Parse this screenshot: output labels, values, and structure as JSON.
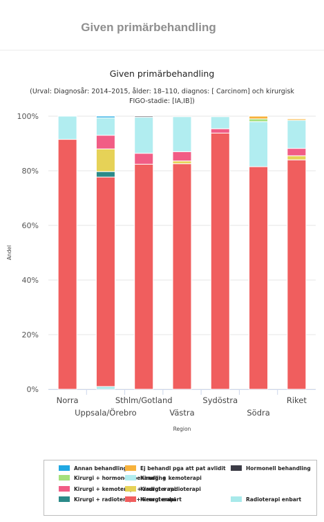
{
  "page": {
    "title": "Given primärbehandling"
  },
  "chart_data": {
    "type": "bar",
    "stacked": true,
    "title": "Given primärbehandling",
    "subtitle_lines": [
      "(Urval: Diagnosår: 2014–2015, ålder: 18–110, diagnos: [ Carcinom] och kirurgisk",
      "FIGO-stadie: [IA,IB])"
    ],
    "xlabel": "Region",
    "ylabel": "Andel",
    "ylim": [
      0,
      100
    ],
    "yticks": [
      "0%",
      "20%",
      "40%",
      "60%",
      "80%",
      "100%"
    ],
    "categories": [
      "Norra",
      "Uppsala/Örebro",
      "Sthlm/Gotland",
      "Västra",
      "Sydöstra",
      "Södra",
      "Riket"
    ],
    "series": [
      {
        "name": "Radioterapi enbart",
        "color": "#a8e9ea",
        "values": [
          0,
          1,
          0,
          0,
          0,
          0,
          0
        ]
      },
      {
        "name": "Kirurgi enbart",
        "color": "#f05e5e",
        "values": [
          91.5,
          76.7,
          82.4,
          82.6,
          93.8,
          81.5,
          84
        ]
      },
      {
        "name": "Kirurgi + radioterapi + kemoterapi",
        "color": "#2b8a89",
        "values": [
          0,
          2,
          0,
          0,
          0,
          0,
          0
        ]
      },
      {
        "name": "Kirurgi + radioterapi",
        "color": "#e6d257",
        "values": [
          0,
          8.3,
          0,
          1,
          0,
          0,
          1.5
        ]
      },
      {
        "name": "Kirurgi + kemoterapi + radioterapi",
        "color": "#f15d85",
        "values": [
          0,
          5,
          4,
          3.4,
          1.6,
          0,
          2.7
        ]
      },
      {
        "name": "Kirurgi + kemoterapi",
        "color": "#b1edf0",
        "values": [
          8.5,
          6.4,
          13.2,
          12.8,
          4.4,
          16.5,
          10.3
        ]
      },
      {
        "name": "Kirurgi + hormonell behandling",
        "color": "#a5e07d",
        "values": [
          0,
          0,
          0,
          0,
          0,
          1,
          0
        ]
      },
      {
        "name": "Ej behandl pga att pat avlidit",
        "color": "#f7b23b",
        "values": [
          0,
          0,
          0,
          0,
          0,
          1,
          0.5
        ]
      },
      {
        "name": "Hormonell behandling",
        "color": "#3c3c46",
        "values": [
          0,
          0,
          0.4,
          0,
          0,
          0,
          0
        ]
      },
      {
        "name": "Annan behandling",
        "color": "#20a8e3",
        "values": [
          0,
          0.6,
          0,
          0,
          0,
          0,
          0
        ]
      }
    ],
    "legend_order": [
      "Annan behandling",
      "Ej behandl pga att pat avlidit",
      "Hormonell behandling",
      "Kirurgi + hormonell behandling",
      "Kirurgi + kemoterapi",
      "Kirurgi + kemoterapi + radioterapi",
      "Kirurgi + radioterapi",
      "Kirurgi + radioterapi + kemoterapi",
      "Kirurgi enbart",
      "Radioterapi enbart"
    ],
    "legend_position": "bottom",
    "grid": true
  }
}
